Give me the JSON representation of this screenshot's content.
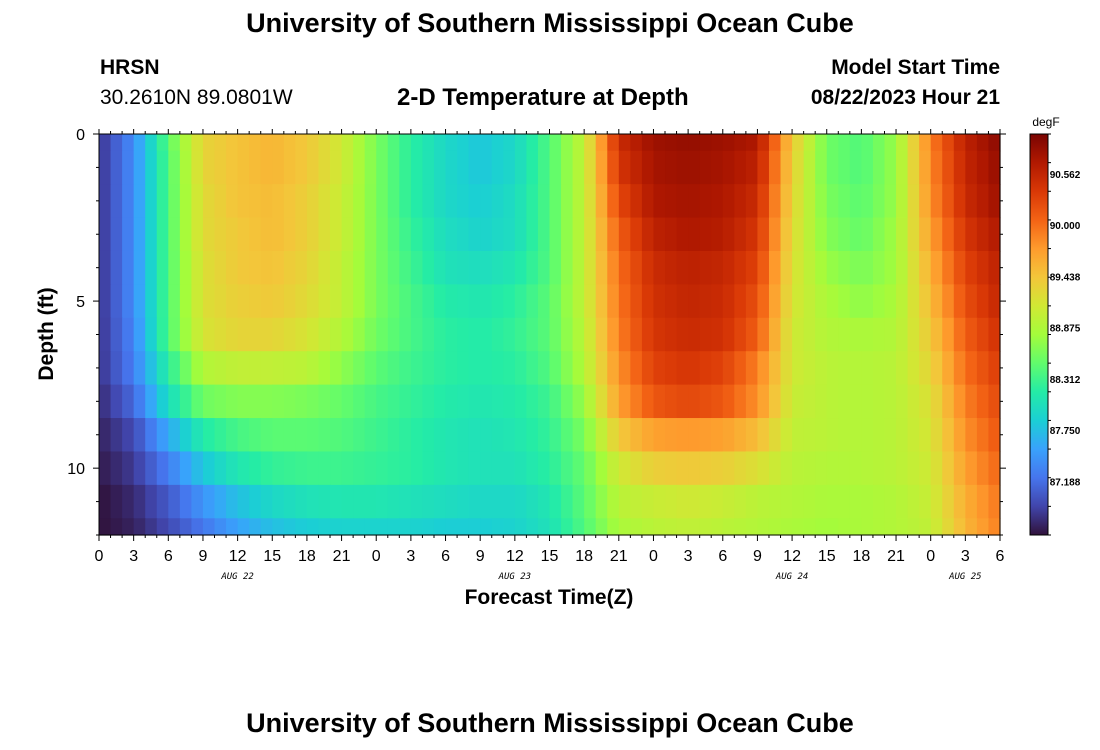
{
  "header": {
    "title": "University of Southern Mississippi Ocean Cube",
    "station": "HRSN",
    "coords": "30.2610N  89.0801W",
    "plot_title": "2-D Temperature at Depth",
    "start_label": "Model Start Time",
    "start_value": "08/22/2023 Hour 21"
  },
  "footer": {
    "title": "University of Southern Mississippi Ocean Cube"
  },
  "chart_data": {
    "type": "heatmap",
    "xlabel": "Forecast Time(Z)",
    "ylabel": "Depth (ft)",
    "x_unit": "hours",
    "x_tick_labels": [
      "0",
      "3",
      "6",
      "9",
      "12",
      "15",
      "18",
      "21",
      "0",
      "3",
      "6",
      "9",
      "12",
      "15",
      "18",
      "21",
      "0",
      "3",
      "6",
      "9",
      "12",
      "15",
      "18",
      "21",
      "0",
      "3",
      "6"
    ],
    "date_labels": [
      {
        "text": "AUG 22",
        "hour": 12
      },
      {
        "text": "AUG 23",
        "hour": 36
      },
      {
        "text": "AUG 24",
        "hour": 60
      },
      {
        "text": "AUG 25",
        "hour": 75
      }
    ],
    "xlim": [
      0,
      78
    ],
    "ylim": [
      12,
      0
    ],
    "y_ticks": [
      0,
      5,
      10
    ],
    "colorbar": {
      "unit": "degF",
      "range": [
        86.6,
        91.0
      ],
      "labels": [
        "90.562",
        "90.000",
        "89.438",
        "88.875",
        "88.312",
        "87.750",
        "87.188"
      ],
      "colors": [
        "#30123b",
        "#4145ab",
        "#4675ed",
        "#39a2fc",
        "#1bcfd4",
        "#24eca6",
        "#61fc6c",
        "#a4fc3b",
        "#d1e834",
        "#f3c63a",
        "#fe9b2d",
        "#f36315",
        "#d93806",
        "#b11901",
        "#7a0402"
      ]
    },
    "depths_ft": [
      0,
      1,
      2,
      3,
      4,
      5,
      6,
      7,
      8,
      9,
      10,
      11,
      12
    ],
    "anchor_hours": [
      0,
      3,
      6,
      9,
      12,
      15,
      18,
      21,
      24,
      27,
      30,
      33,
      36,
      39,
      42,
      45,
      48,
      51,
      54,
      57,
      60,
      63,
      66,
      69,
      72,
      75,
      78
    ],
    "values_degF": [
      [
        86.8,
        87.4,
        88.45,
        89.3,
        89.45,
        89.55,
        89.4,
        89.1,
        88.6,
        88.2,
        87.95,
        87.8,
        87.95,
        88.4,
        89.0,
        90.5,
        90.8,
        90.85,
        90.8,
        90.7,
        89.4,
        88.55,
        88.4,
        88.75,
        89.9,
        90.6,
        90.9
      ],
      [
        86.8,
        87.4,
        88.4,
        89.3,
        89.45,
        89.55,
        89.4,
        89.1,
        88.6,
        88.2,
        87.95,
        87.8,
        87.95,
        88.4,
        89.0,
        90.4,
        90.75,
        90.8,
        90.75,
        90.6,
        89.35,
        88.55,
        88.4,
        88.75,
        89.85,
        90.55,
        90.85
      ],
      [
        86.8,
        87.4,
        88.4,
        89.25,
        89.45,
        89.5,
        89.35,
        89.05,
        88.6,
        88.2,
        87.95,
        87.85,
        88.0,
        88.4,
        89.0,
        90.25,
        90.7,
        90.75,
        90.7,
        90.5,
        89.3,
        88.6,
        88.45,
        88.75,
        89.8,
        90.5,
        90.8
      ],
      [
        86.8,
        87.4,
        88.4,
        89.25,
        89.4,
        89.5,
        89.35,
        89.05,
        88.6,
        88.25,
        88.0,
        87.9,
        88.0,
        88.4,
        89.0,
        90.1,
        90.6,
        90.7,
        90.65,
        90.4,
        89.25,
        88.65,
        88.5,
        88.8,
        89.7,
        90.4,
        90.7
      ],
      [
        86.8,
        87.4,
        88.4,
        89.2,
        89.4,
        89.45,
        89.3,
        89.0,
        88.6,
        88.3,
        88.05,
        88.0,
        88.1,
        88.4,
        89.0,
        90.0,
        90.5,
        90.6,
        90.55,
        90.3,
        89.2,
        88.75,
        88.6,
        88.8,
        89.6,
        90.3,
        90.6
      ],
      [
        86.8,
        87.4,
        88.4,
        89.2,
        89.35,
        89.4,
        89.25,
        89.0,
        88.6,
        88.35,
        88.15,
        88.1,
        88.2,
        88.45,
        89.0,
        89.95,
        90.45,
        90.55,
        90.5,
        90.2,
        89.15,
        88.85,
        88.7,
        88.85,
        89.5,
        90.2,
        90.55
      ],
      [
        86.8,
        87.35,
        88.4,
        89.15,
        89.3,
        89.3,
        89.15,
        88.9,
        88.55,
        88.35,
        88.2,
        88.15,
        88.25,
        88.45,
        88.95,
        89.9,
        90.4,
        90.5,
        90.45,
        90.1,
        89.1,
        88.9,
        88.85,
        88.9,
        89.4,
        90.1,
        90.45
      ],
      [
        86.8,
        87.3,
        88.2,
        88.9,
        89.0,
        89.0,
        88.95,
        88.7,
        88.45,
        88.3,
        88.2,
        88.15,
        88.2,
        88.4,
        88.9,
        89.8,
        90.3,
        90.4,
        90.3,
        89.9,
        89.1,
        88.95,
        88.9,
        88.95,
        89.3,
        90.0,
        90.35
      ],
      [
        86.75,
        87.15,
        88.0,
        88.55,
        88.65,
        88.65,
        88.6,
        88.5,
        88.35,
        88.25,
        88.15,
        88.1,
        88.15,
        88.3,
        88.75,
        89.7,
        90.15,
        90.25,
        90.15,
        89.8,
        89.05,
        88.95,
        88.9,
        88.95,
        89.2,
        89.9,
        90.25
      ],
      [
        86.7,
        86.95,
        87.6,
        88.15,
        88.35,
        88.45,
        88.45,
        88.4,
        88.3,
        88.2,
        88.1,
        88.05,
        88.1,
        88.25,
        88.6,
        89.4,
        89.7,
        89.75,
        89.7,
        89.5,
        89.0,
        88.95,
        88.9,
        88.95,
        89.15,
        89.8,
        90.15
      ],
      [
        86.65,
        86.85,
        87.3,
        87.8,
        88.1,
        88.25,
        88.3,
        88.3,
        88.25,
        88.2,
        88.1,
        88.05,
        88.05,
        88.2,
        88.5,
        89.1,
        89.35,
        89.4,
        89.35,
        89.2,
        88.95,
        88.9,
        88.9,
        88.95,
        89.1,
        89.7,
        90.05
      ],
      [
        86.6,
        86.75,
        87.05,
        87.45,
        87.75,
        87.95,
        88.05,
        88.1,
        88.1,
        88.05,
        88.0,
        87.95,
        87.95,
        88.1,
        88.45,
        88.95,
        89.05,
        89.1,
        89.05,
        88.95,
        88.9,
        88.85,
        88.85,
        88.9,
        89.05,
        89.6,
        89.95
      ],
      [
        86.6,
        86.7,
        86.95,
        87.25,
        87.55,
        87.75,
        87.85,
        87.9,
        87.9,
        87.9,
        87.85,
        87.85,
        87.9,
        88.05,
        88.4,
        88.85,
        88.95,
        89.0,
        88.95,
        88.9,
        88.85,
        88.8,
        88.85,
        88.9,
        89.0,
        89.55,
        89.9
      ]
    ]
  }
}
